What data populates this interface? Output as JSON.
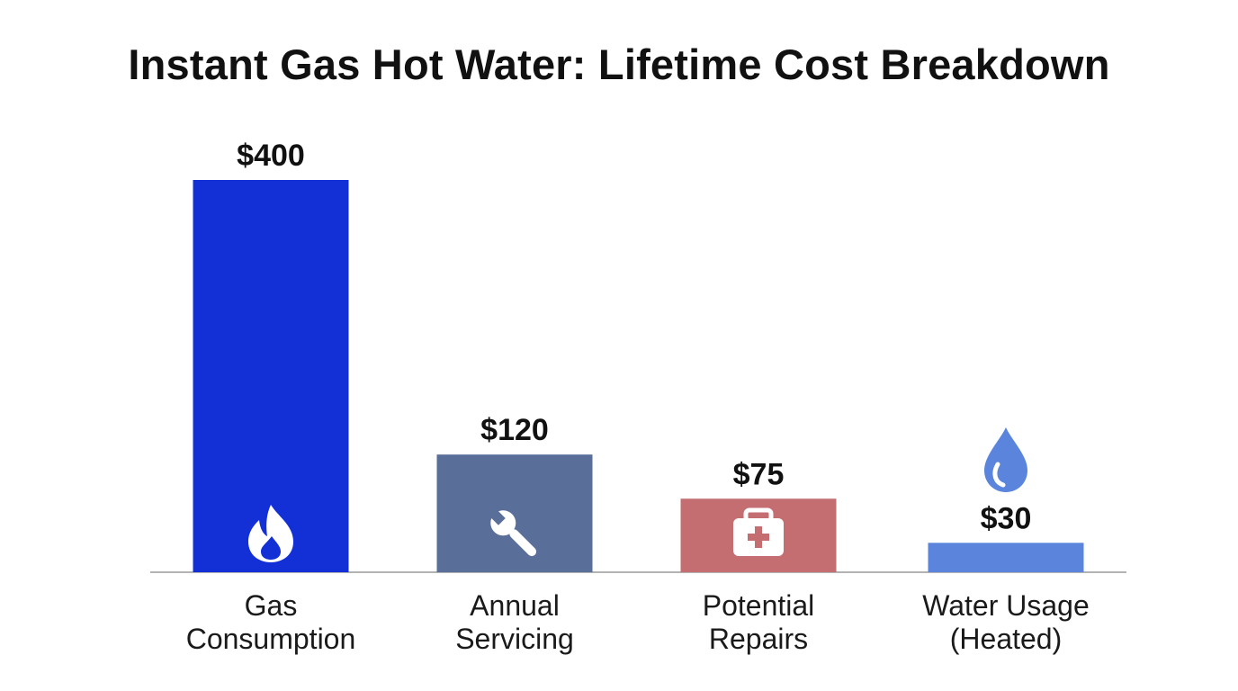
{
  "chart_data": {
    "type": "bar",
    "title": "Instant Gas Hot Water: Lifetime Cost Breakdown",
    "categories": [
      [
        "Gas",
        "Consumption"
      ],
      [
        "Annual",
        "Servicing"
      ],
      [
        "Potential",
        "Repairs"
      ],
      [
        "Water Usage",
        "(Heated)"
      ]
    ],
    "values": [
      400,
      120,
      75,
      30
    ],
    "value_labels": [
      "$400",
      "$120",
      "$75",
      "$30"
    ],
    "ylim": [
      0,
      400
    ],
    "grid": false,
    "legend": "none",
    "colors": [
      "#1230D6",
      "#5A6E9A",
      "#C46E72",
      "#5B85DC"
    ],
    "icons": [
      "flame-icon",
      "wrench-icon",
      "first-aid-kit-icon",
      "water-drop-icon"
    ],
    "icon_colors": [
      "#ffffff",
      "#ffffff",
      "#ffffff",
      "#5B85DC"
    ]
  }
}
